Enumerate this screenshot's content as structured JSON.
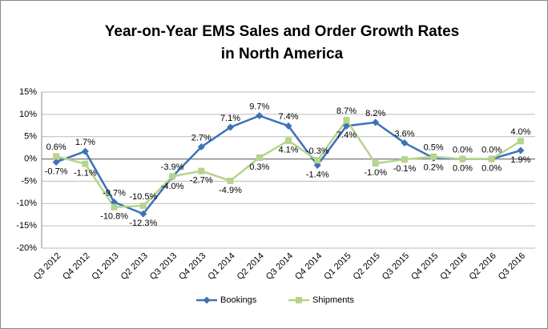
{
  "chart_data": {
    "type": "line",
    "title": [
      "Year-on-Year EMS Sales and Order Growth Rates",
      "in North America"
    ],
    "categories": [
      "Q3 2012",
      "Q4 2012",
      "Q1 2013",
      "Q2 2013",
      "Q3 2013",
      "Q4 2013",
      "Q1 2014",
      "Q2 2014",
      "Q3 2014",
      "Q4 2014",
      "Q1 2015",
      "Q2 2015",
      "Q3 2015",
      "Q4 2015",
      "Q1 2016",
      "Q2 2016",
      "Q3 2016"
    ],
    "series": [
      {
        "name": "Bookings",
        "color": "#3c72b8",
        "marker": "diamond",
        "values": [
          -0.7,
          1.7,
          -9.7,
          -12.3,
          -4.0,
          2.7,
          7.1,
          9.7,
          7.4,
          -1.4,
          7.4,
          8.2,
          3.6,
          0.2,
          0.0,
          0.0,
          1.9
        ],
        "value_labels": [
          "-0.7%",
          "1.7%",
          "-9.7%",
          "-12.3%",
          "-4.0%",
          "2.7%",
          "7.1%",
          "9.7%",
          "7.4%",
          "-1.4%",
          "7.4%",
          "8.2%",
          "3.6%",
          "0.2%",
          "0.0%",
          "0.0%",
          "1.9%"
        ]
      },
      {
        "name": "Shipments",
        "color": "#b5d48c",
        "marker": "square",
        "values": [
          0.6,
          -1.1,
          -10.8,
          -10.5,
          -3.9,
          -2.7,
          -4.9,
          0.3,
          4.1,
          -0.3,
          8.7,
          -1.0,
          -0.1,
          0.5,
          0.0,
          0.0,
          4.0
        ],
        "value_labels": [
          "0.6%",
          "-1.1%",
          "-10.8%",
          "-10.5%",
          "-3.9%",
          "-2.7%",
          "-4.9%",
          "0.3%",
          "4.1%",
          "-0.3%",
          "8.7%",
          "-1.0%",
          "-0.1%",
          "0.5%",
          "0.0%",
          "0.0%",
          "4.0%"
        ]
      }
    ],
    "ylim": [
      -20,
      15
    ],
    "yticks": [
      {
        "value": -20,
        "label": "-20%"
      },
      {
        "value": -15,
        "label": "-15%"
      },
      {
        "value": -10,
        "label": "-10%"
      },
      {
        "value": -5,
        "label": "-5%"
      },
      {
        "value": 0,
        "label": "0%"
      },
      {
        "value": 5,
        "label": "5%"
      },
      {
        "value": 10,
        "label": "10%"
      },
      {
        "value": 15,
        "label": "15%"
      }
    ],
    "grid": true,
    "legend": "bottom"
  }
}
